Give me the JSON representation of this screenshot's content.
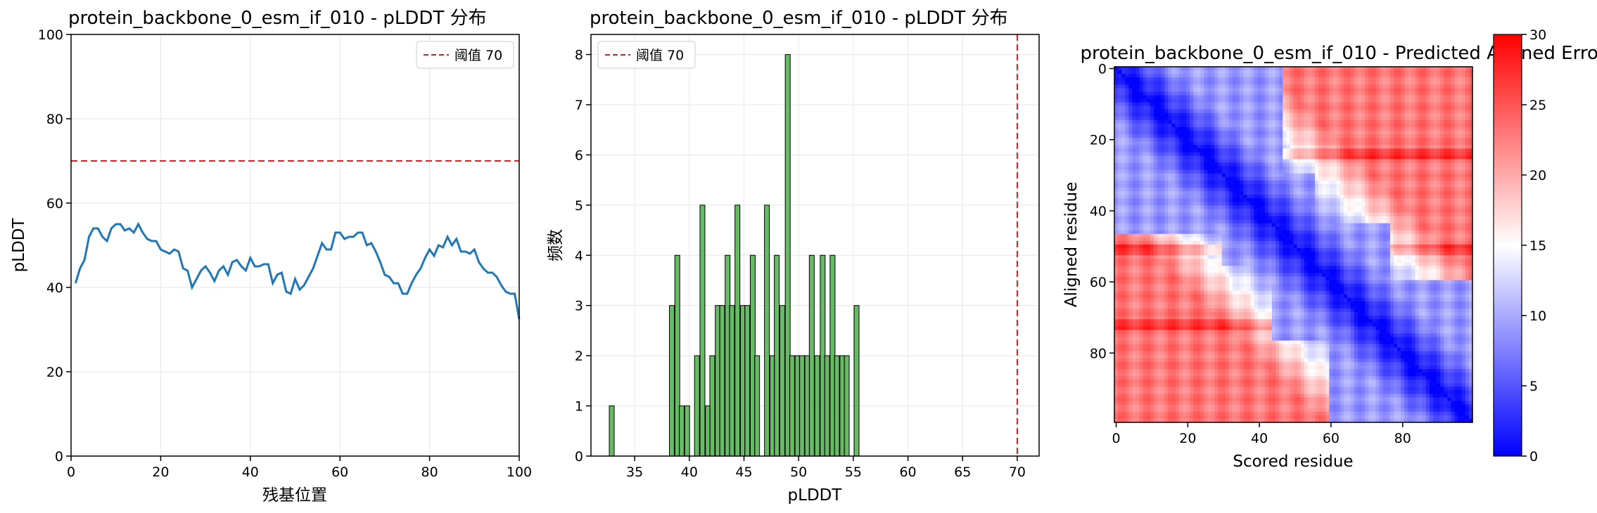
{
  "chart_data": [
    {
      "type": "line",
      "title": "protein_backbone_0_esm_if_010 - pLDDT 分布",
      "xlabel": "残基位置",
      "ylabel": "pLDDT",
      "xlim": [
        0,
        100
      ],
      "ylim": [
        0,
        100
      ],
      "xticks": [
        0,
        20,
        40,
        60,
        80,
        100
      ],
      "yticks": [
        0,
        20,
        40,
        60,
        80,
        100
      ],
      "grid": true,
      "legend_position": "top-right",
      "line_color": "#1f77b4",
      "threshold": {
        "value": 70,
        "label": "阈值 70",
        "color": "#e41a1c"
      },
      "x": [
        1,
        2,
        3,
        4,
        5,
        6,
        7,
        8,
        9,
        10,
        11,
        12,
        13,
        14,
        15,
        16,
        17,
        18,
        19,
        20,
        21,
        22,
        23,
        24,
        25,
        26,
        27,
        28,
        29,
        30,
        31,
        32,
        33,
        34,
        35,
        36,
        37,
        38,
        39,
        40,
        41,
        42,
        43,
        44,
        45,
        46,
        47,
        48,
        49,
        50,
        51,
        52,
        53,
        54,
        55,
        56,
        57,
        58,
        59,
        60,
        61,
        62,
        63,
        64,
        65,
        66,
        67,
        68,
        69,
        70,
        71,
        72,
        73,
        74,
        75,
        76,
        77,
        78,
        79,
        80,
        81,
        82,
        83,
        84,
        85,
        86,
        87,
        88,
        89,
        90,
        91,
        92,
        93,
        94,
        95,
        96,
        97,
        98,
        99,
        100
      ],
      "values": [
        41,
        44.5,
        46.5,
        52,
        54,
        54,
        52,
        51,
        54,
        55,
        55,
        53.5,
        54,
        53,
        55,
        53,
        51.5,
        51,
        51,
        49,
        48.5,
        48,
        49,
        48.5,
        44.5,
        44,
        40,
        42,
        44,
        45,
        43.5,
        41.5,
        44,
        45,
        43,
        46,
        46.5,
        45,
        44,
        47,
        45,
        45,
        45.5,
        45.5,
        41,
        43,
        43.5,
        39,
        38.5,
        42,
        39.5,
        40.5,
        42.5,
        44.5,
        47.5,
        50.5,
        49,
        49,
        53,
        53,
        51.5,
        52,
        52,
        53,
        53,
        50,
        50.5,
        48.5,
        46,
        43,
        42.5,
        41,
        41,
        38.5,
        38.5,
        41,
        43,
        44.5,
        47,
        49,
        47.5,
        50,
        49.5,
        52,
        50,
        51.5,
        48.5,
        48.5,
        48,
        49,
        46,
        44.5,
        43.5,
        43.5,
        42.5,
        40.5,
        39,
        38.5,
        38.5,
        32.5
      ]
    },
    {
      "type": "bar",
      "title": "protein_backbone_0_esm_if_010 - pLDDT 分布",
      "xlabel": "pLDDT",
      "ylabel": "频数",
      "xlim": [
        31,
        72
      ],
      "ylim": [
        0,
        8.4
      ],
      "xticks": [
        35,
        40,
        45,
        50,
        55,
        60,
        65,
        70
      ],
      "yticks": [
        0,
        1,
        2,
        3,
        4,
        5,
        6,
        7,
        8
      ],
      "grid": true,
      "legend_position": "top-left",
      "bar_color": "#4daf4a",
      "bin_width": 0.45,
      "threshold": {
        "value": 70,
        "label": "阈值 70",
        "color": "#e41a1c"
      },
      "bins": [
        {
          "x": 32.9,
          "count": 1
        },
        {
          "x": 38.4,
          "count": 3
        },
        {
          "x": 38.9,
          "count": 4
        },
        {
          "x": 39.3,
          "count": 1
        },
        {
          "x": 39.8,
          "count": 1
        },
        {
          "x": 40.7,
          "count": 2
        },
        {
          "x": 41.2,
          "count": 5
        },
        {
          "x": 41.7,
          "count": 1
        },
        {
          "x": 42.1,
          "count": 2
        },
        {
          "x": 42.6,
          "count": 3
        },
        {
          "x": 43.0,
          "count": 3
        },
        {
          "x": 43.5,
          "count": 4
        },
        {
          "x": 43.9,
          "count": 3
        },
        {
          "x": 44.4,
          "count": 5
        },
        {
          "x": 44.9,
          "count": 3
        },
        {
          "x": 45.3,
          "count": 3
        },
        {
          "x": 45.8,
          "count": 4
        },
        {
          "x": 46.2,
          "count": 2
        },
        {
          "x": 47.1,
          "count": 5
        },
        {
          "x": 47.6,
          "count": 2
        },
        {
          "x": 48.0,
          "count": 4
        },
        {
          "x": 48.5,
          "count": 3
        },
        {
          "x": 49.0,
          "count": 8
        },
        {
          "x": 49.4,
          "count": 2
        },
        {
          "x": 49.9,
          "count": 2
        },
        {
          "x": 50.3,
          "count": 2
        },
        {
          "x": 50.8,
          "count": 2
        },
        {
          "x": 51.2,
          "count": 4
        },
        {
          "x": 51.7,
          "count": 2
        },
        {
          "x": 52.2,
          "count": 4
        },
        {
          "x": 52.6,
          "count": 2
        },
        {
          "x": 53.1,
          "count": 4
        },
        {
          "x": 53.5,
          "count": 2
        },
        {
          "x": 54.0,
          "count": 2
        },
        {
          "x": 54.4,
          "count": 2
        },
        {
          "x": 55.3,
          "count": 3
        }
      ]
    },
    {
      "type": "heatmap",
      "title": "protein_backbone_0_esm_if_010 - Predicted Aligned Error",
      "xlabel": "Scored residue",
      "ylabel": "Aligned residue",
      "size": 100,
      "xticks": [
        0,
        20,
        40,
        60,
        80
      ],
      "yticks": [
        0,
        20,
        40,
        60,
        80
      ],
      "colormap": "bwr",
      "colorbar": {
        "min": 0,
        "max": 30,
        "ticks": [
          0,
          5,
          10,
          15,
          20,
          25,
          30
        ]
      },
      "blocks": [
        [
          0,
          47
        ],
        [
          30,
          56
        ],
        [
          44,
          77
        ],
        [
          60,
          100
        ]
      ],
      "block_value": 9,
      "off_block_value": 23,
      "diag_slope": 0.55,
      "bright_rows": [
        24,
        51,
        72
      ],
      "bright_row_extra": 4
    }
  ]
}
